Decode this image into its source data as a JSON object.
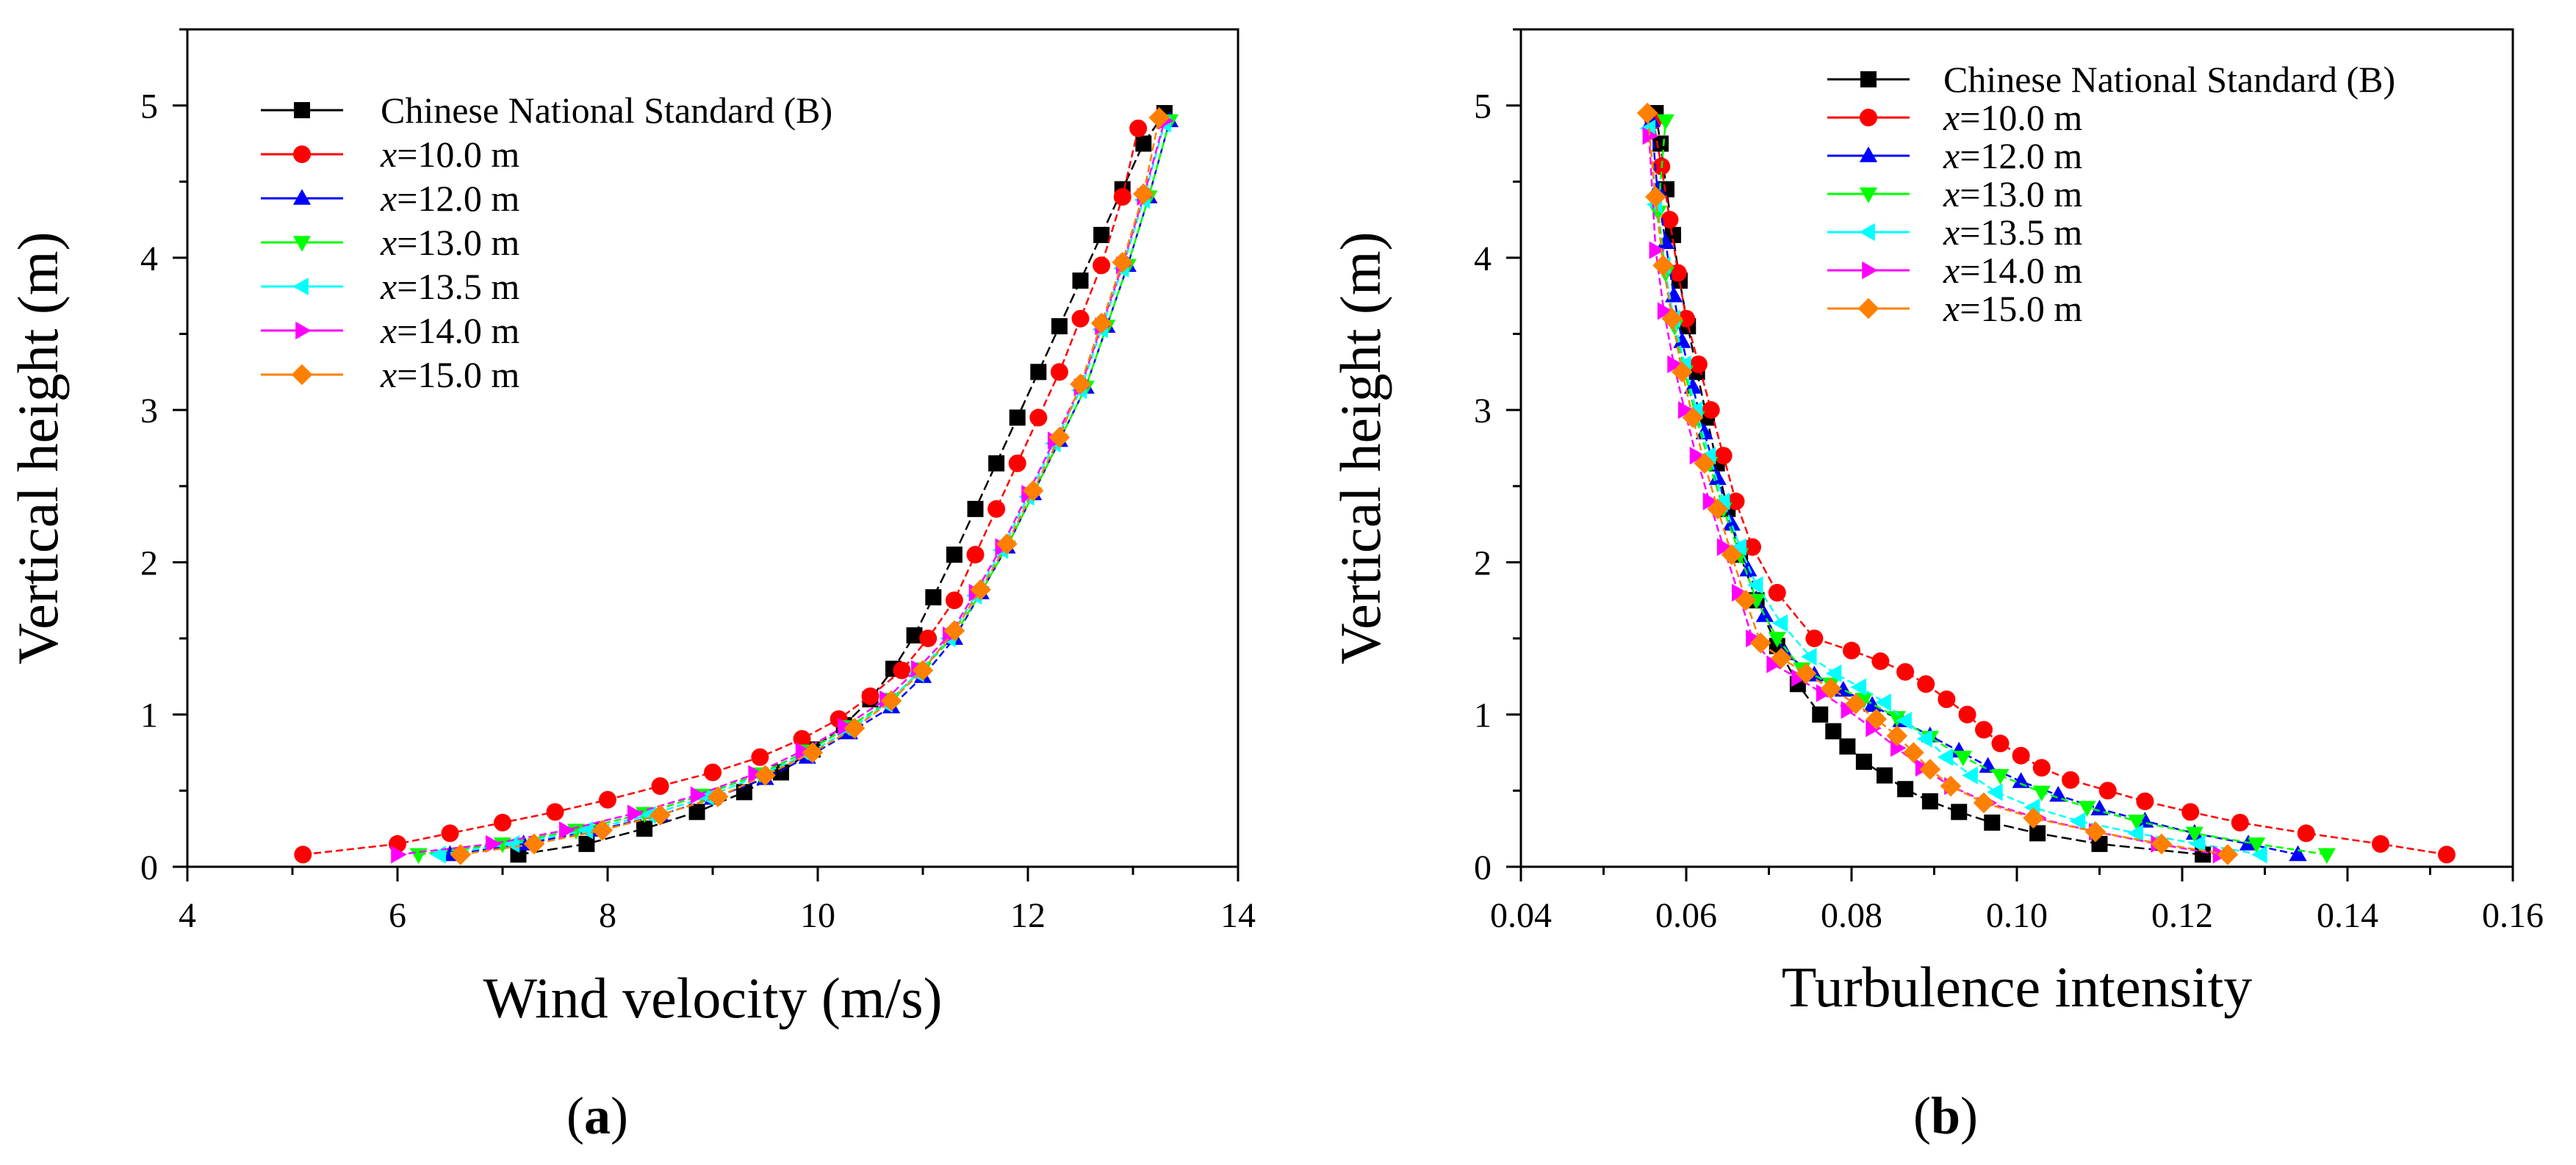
{
  "figure": {
    "panels": [
      {
        "label_open": "(",
        "label_letter": "a",
        "label_close": ")"
      },
      {
        "label_open": "(",
        "label_letter": "b",
        "label_close": ")"
      }
    ]
  },
  "series_style": [
    {
      "name": "Chinese National Standard (B)",
      "prefix": "",
      "suffix": "Chinese National Standard (B)",
      "color": "#000000",
      "marker": "square"
    },
    {
      "name": "x=10.0 m",
      "prefix": "x",
      "suffix": "=10.0 m",
      "color": "#ff0000",
      "marker": "circle"
    },
    {
      "name": "x=12.0 m",
      "prefix": "x",
      "suffix": "=12.0 m",
      "color": "#0000ff",
      "marker": "triangle-up"
    },
    {
      "name": "x=13.0 m",
      "prefix": "x",
      "suffix": "=13.0 m",
      "color": "#00ff00",
      "marker": "triangle-down"
    },
    {
      "name": "x=13.5 m",
      "prefix": "x",
      "suffix": "=13.5 m",
      "color": "#00ffff",
      "marker": "triangle-left"
    },
    {
      "name": "x=14.0 m",
      "prefix": "x",
      "suffix": "=14.0 m",
      "color": "#ff00ff",
      "marker": "triangle-right"
    },
    {
      "name": "x=15.0 m",
      "prefix": "x",
      "suffix": "=15.0 m",
      "color": "#ff8000",
      "marker": "diamond"
    }
  ],
  "chart_data": [
    {
      "type": "line",
      "title": "",
      "panel_label": "(a)",
      "xlabel": "Wind velocity (m/s)",
      "ylabel": "Vertical height (m)",
      "xlim": [
        4,
        14
      ],
      "ylim": [
        0,
        5.5
      ],
      "xticks": [
        4,
        6,
        8,
        10,
        12,
        14
      ],
      "yticks": [
        0,
        1,
        2,
        3,
        4,
        5
      ],
      "xtick_labels": [
        "4",
        "6",
        "8",
        "10",
        "12",
        "14"
      ],
      "ytick_labels": [
        "0",
        "1",
        "2",
        "3",
        "4",
        "5"
      ],
      "legend_position": "top-left",
      "series": [
        {
          "name": "Chinese National Standard (B)",
          "x": [
            7.15,
            7.8,
            8.35,
            8.85,
            9.3,
            9.65,
            9.95,
            10.25,
            10.5,
            10.72,
            10.92,
            11.1,
            11.3,
            11.5,
            11.7,
            11.9,
            12.1,
            12.3,
            12.5,
            12.7,
            12.9,
            13.1,
            13.3
          ],
          "y": [
            0.08,
            0.15,
            0.25,
            0.36,
            0.49,
            0.62,
            0.77,
            0.93,
            1.1,
            1.3,
            1.52,
            1.77,
            2.05,
            2.35,
            2.65,
            2.95,
            3.25,
            3.55,
            3.85,
            4.15,
            4.45,
            4.75,
            4.95
          ]
        },
        {
          "name": "x=10.0 m",
          "x": [
            5.1,
            6.0,
            6.5,
            7.0,
            7.5,
            8.0,
            8.5,
            9.0,
            9.45,
            9.85,
            10.2,
            10.5,
            10.8,
            11.05,
            11.3,
            11.5,
            11.7,
            11.9,
            12.1,
            12.3,
            12.5,
            12.7,
            12.9,
            13.05
          ],
          "y": [
            0.08,
            0.15,
            0.22,
            0.29,
            0.36,
            0.44,
            0.53,
            0.62,
            0.72,
            0.84,
            0.97,
            1.12,
            1.29,
            1.5,
            1.75,
            2.05,
            2.35,
            2.65,
            2.95,
            3.25,
            3.6,
            3.95,
            4.4,
            4.85
          ]
        },
        {
          "name": "x=12.0 m",
          "x": [
            6.5,
            7.2,
            7.9,
            8.5,
            9.0,
            9.5,
            9.9,
            10.3,
            10.7,
            11.0,
            11.3,
            11.55,
            11.8,
            12.05,
            12.3,
            12.55,
            12.75,
            12.95,
            13.15,
            13.35
          ],
          "y": [
            0.08,
            0.15,
            0.24,
            0.34,
            0.45,
            0.58,
            0.72,
            0.88,
            1.05,
            1.25,
            1.5,
            1.8,
            2.1,
            2.45,
            2.8,
            3.15,
            3.55,
            3.95,
            4.4,
            4.9
          ]
        },
        {
          "name": "x=13.0 m",
          "x": [
            6.2,
            7.0,
            7.7,
            8.35,
            8.9,
            9.45,
            9.9,
            10.3,
            10.7,
            11.0,
            11.3,
            11.55,
            11.8,
            12.05,
            12.3,
            12.55,
            12.75,
            12.95,
            13.15,
            13.35
          ],
          "y": [
            0.08,
            0.15,
            0.24,
            0.35,
            0.47,
            0.61,
            0.76,
            0.92,
            1.1,
            1.3,
            1.52,
            1.8,
            2.1,
            2.45,
            2.8,
            3.15,
            3.55,
            3.95,
            4.4,
            4.9
          ]
        },
        {
          "name": "x=13.5 m",
          "x": [
            6.4,
            7.1,
            7.8,
            8.4,
            8.95,
            9.45,
            9.9,
            10.3,
            10.65,
            10.95,
            11.25,
            11.5,
            11.75,
            12.0,
            12.25,
            12.5,
            12.7,
            12.9,
            13.1,
            13.3
          ],
          "y": [
            0.08,
            0.15,
            0.24,
            0.34,
            0.46,
            0.6,
            0.74,
            0.9,
            1.07,
            1.27,
            1.5,
            1.78,
            2.08,
            2.43,
            2.78,
            3.13,
            3.53,
            3.93,
            4.38,
            4.88
          ]
        },
        {
          "name": "x=14.0 m",
          "x": [
            6.0,
            6.9,
            7.6,
            8.25,
            8.85,
            9.4,
            9.85,
            10.25,
            10.65,
            10.95,
            11.25,
            11.5,
            11.75,
            12.0,
            12.25,
            12.5,
            12.7,
            12.9,
            13.1,
            13.3
          ],
          "y": [
            0.08,
            0.15,
            0.24,
            0.35,
            0.47,
            0.61,
            0.76,
            0.92,
            1.1,
            1.3,
            1.52,
            1.8,
            2.1,
            2.45,
            2.8,
            3.15,
            3.55,
            3.95,
            4.4,
            4.9
          ]
        },
        {
          "name": "x=15.0 m",
          "x": [
            6.6,
            7.3,
            7.95,
            8.5,
            9.05,
            9.5,
            9.95,
            10.35,
            10.7,
            11.0,
            11.3,
            11.55,
            11.8,
            12.05,
            12.3,
            12.5,
            12.7,
            12.9,
            13.1,
            13.25
          ],
          "y": [
            0.08,
            0.15,
            0.24,
            0.34,
            0.46,
            0.6,
            0.75,
            0.91,
            1.09,
            1.29,
            1.55,
            1.82,
            2.12,
            2.47,
            2.82,
            3.17,
            3.57,
            3.97,
            4.42,
            4.92
          ]
        }
      ]
    },
    {
      "type": "line",
      "title": "",
      "panel_label": "(b)",
      "xlabel": "Turbulence intensity",
      "ylabel": "Vertical height (m)",
      "xlim": [
        0.04,
        0.16
      ],
      "ylim": [
        0,
        5.5
      ],
      "xticks": [
        0.04,
        0.06,
        0.08,
        0.1,
        0.12,
        0.14,
        0.16
      ],
      "yticks": [
        0,
        1,
        2,
        3,
        4,
        5
      ],
      "xtick_labels": [
        "0.04",
        "0.06",
        "0.08",
        "0.10",
        "0.12",
        "0.14",
        "0.16"
      ],
      "ytick_labels": [
        "0",
        "1",
        "2",
        "3",
        "4",
        "5"
      ],
      "legend_position": "top-right",
      "series": [
        {
          "name": "Chinese National Standard (B)",
          "x": [
            0.1225,
            0.11,
            0.1025,
            0.097,
            0.093,
            0.0895,
            0.0865,
            0.084,
            0.0815,
            0.0795,
            0.0778,
            0.0762,
            0.0735,
            0.071,
            0.0685,
            0.0665,
            0.065,
            0.0637,
            0.0625,
            0.0613,
            0.0602,
            0.0592,
            0.0584,
            0.0576,
            0.0569,
            0.0563
          ],
          "y": [
            0.08,
            0.15,
            0.22,
            0.29,
            0.36,
            0.43,
            0.51,
            0.6,
            0.69,
            0.79,
            0.89,
            1.0,
            1.2,
            1.45,
            1.75,
            2.05,
            2.35,
            2.65,
            2.95,
            3.25,
            3.55,
            3.85,
            4.15,
            4.45,
            4.75,
            4.95
          ]
        },
        {
          "name": "x=10.0 m",
          "x": [
            0.152,
            0.144,
            0.135,
            0.127,
            0.121,
            0.1155,
            0.111,
            0.1065,
            0.103,
            0.1005,
            0.098,
            0.096,
            0.094,
            0.0915,
            0.089,
            0.0865,
            0.0835,
            0.08,
            0.0755,
            0.071,
            0.068,
            0.066,
            0.0645,
            0.063,
            0.0615,
            0.06,
            0.059,
            0.058,
            0.057,
            0.056
          ],
          "y": [
            0.08,
            0.15,
            0.22,
            0.29,
            0.36,
            0.43,
            0.5,
            0.57,
            0.65,
            0.73,
            0.81,
            0.9,
            1.0,
            1.1,
            1.2,
            1.28,
            1.35,
            1.42,
            1.5,
            1.8,
            2.1,
            2.4,
            2.7,
            3.0,
            3.3,
            3.6,
            3.9,
            4.25,
            4.6,
            4.9
          ]
        },
        {
          "name": "x=12.0 m",
          "x": [
            0.134,
            0.128,
            0.1215,
            0.1155,
            0.11,
            0.105,
            0.1005,
            0.0965,
            0.093,
            0.0895,
            0.086,
            0.0825,
            0.079,
            0.0755,
            0.072,
            0.0695,
            0.0675,
            0.0655,
            0.0638,
            0.0622,
            0.0608,
            0.0595,
            0.0585,
            0.0575,
            0.0565,
            0.0558
          ],
          "y": [
            0.08,
            0.15,
            0.22,
            0.3,
            0.38,
            0.47,
            0.56,
            0.66,
            0.76,
            0.86,
            0.96,
            1.06,
            1.16,
            1.26,
            1.4,
            1.65,
            1.95,
            2.25,
            2.55,
            2.85,
            3.15,
            3.45,
            3.75,
            4.1,
            4.45,
            4.9
          ]
        },
        {
          "name": "x=13.0 m",
          "x": [
            0.1375,
            0.129,
            0.1215,
            0.1145,
            0.1085,
            0.103,
            0.098,
            0.0935,
            0.0895,
            0.0855,
            0.0815,
            0.0775,
            0.074,
            0.071,
            0.0685,
            0.0665,
            0.0645,
            0.0628,
            0.0612,
            0.0598,
            0.0586,
            0.0575,
            0.0566,
            0.0575
          ],
          "y": [
            0.08,
            0.15,
            0.22,
            0.3,
            0.39,
            0.49,
            0.6,
            0.72,
            0.85,
            0.98,
            1.1,
            1.2,
            1.3,
            1.5,
            1.75,
            2.05,
            2.35,
            2.65,
            2.95,
            3.25,
            3.55,
            3.9,
            4.3,
            4.9
          ]
        },
        {
          "name": "x=13.5 m",
          "x": [
            0.1295,
            0.122,
            0.1145,
            0.1075,
            0.102,
            0.0975,
            0.0945,
            0.0915,
            0.089,
            0.0865,
            0.084,
            0.081,
            0.078,
            0.075,
            0.0715,
            0.0685,
            0.0665,
            0.0645,
            0.0628,
            0.0612,
            0.0598,
            0.0585,
            0.0573,
            0.0563,
            0.0555
          ],
          "y": [
            0.08,
            0.15,
            0.22,
            0.3,
            0.39,
            0.49,
            0.6,
            0.72,
            0.84,
            0.96,
            1.08,
            1.18,
            1.27,
            1.38,
            1.6,
            1.85,
            2.1,
            2.4,
            2.7,
            3.0,
            3.3,
            3.6,
            3.95,
            4.35,
            4.85
          ]
        },
        {
          "name": "x=14.0 m",
          "x": [
            0.1245,
            0.117,
            0.1095,
            0.1025,
            0.0965,
            0.092,
            0.0885,
            0.0855,
            0.0825,
            0.0795,
            0.0765,
            0.0735,
            0.0705,
            0.068,
            0.0663,
            0.0645,
            0.0628,
            0.0612,
            0.0598,
            0.0585,
            0.0573,
            0.0563,
            0.0555
          ],
          "y": [
            0.08,
            0.15,
            0.23,
            0.32,
            0.42,
            0.53,
            0.65,
            0.78,
            0.91,
            1.03,
            1.14,
            1.24,
            1.33,
            1.5,
            1.8,
            2.1,
            2.4,
            2.7,
            3.0,
            3.3,
            3.65,
            4.05,
            4.8
          ]
        },
        {
          "name": "x=15.0 m",
          "x": [
            0.1255,
            0.1175,
            0.1095,
            0.102,
            0.096,
            0.092,
            0.0895,
            0.0875,
            0.0855,
            0.083,
            0.0805,
            0.0775,
            0.0745,
            0.0715,
            0.069,
            0.0672,
            0.0655,
            0.0638,
            0.0622,
            0.0608,
            0.0595,
            0.0583,
            0.0572,
            0.0563,
            0.0553
          ],
          "y": [
            0.08,
            0.15,
            0.23,
            0.32,
            0.42,
            0.53,
            0.64,
            0.75,
            0.86,
            0.97,
            1.07,
            1.17,
            1.27,
            1.37,
            1.47,
            1.75,
            2.05,
            2.35,
            2.65,
            2.95,
            3.25,
            3.6,
            3.95,
            4.4,
            4.95
          ]
        }
      ]
    }
  ]
}
